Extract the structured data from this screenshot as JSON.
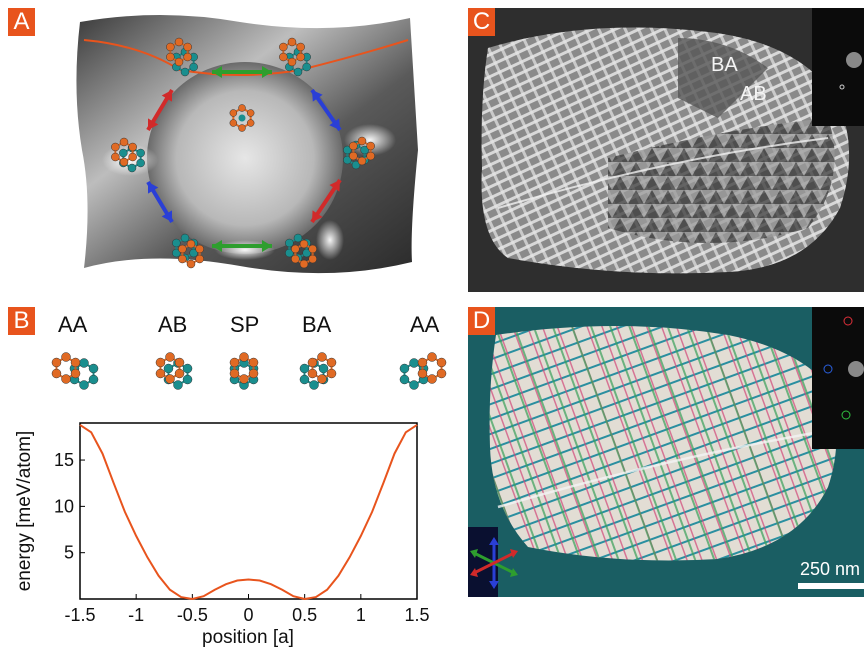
{
  "panels": {
    "a": {
      "tag": "A"
    },
    "b": {
      "tag": "B"
    },
    "c": {
      "tag": "C",
      "label_ba": "BA",
      "label_ab": "AB"
    },
    "d": {
      "tag": "D",
      "scale_text": "250 nm"
    }
  },
  "stackings": [
    "AA",
    "AB",
    "SP",
    "BA",
    "AA"
  ],
  "colors": {
    "accent": "#e8541d",
    "carbon_top": "#e06a24",
    "carbon_bottom": "#1a8e8e",
    "arrow_green": "#2e9e2e",
    "arrow_blue": "#2a3fd6",
    "arrow_red": "#d12a2a"
  },
  "chart_data": {
    "type": "line",
    "xlabel": "position [a]",
    "ylabel": "energy [meV/atom]",
    "xlim": [
      -1.5,
      1.5
    ],
    "ylim": [
      0,
      19
    ],
    "xticks": [
      "-1.5",
      "-1",
      "-0.5",
      "0",
      "0.5",
      "1",
      "1.5"
    ],
    "xtick_values": [
      -1.5,
      -1,
      -0.5,
      0,
      0.5,
      1,
      1.5
    ],
    "yticks": [
      "5",
      "10",
      "15"
    ],
    "ytick_values": [
      5,
      10,
      15
    ],
    "series": [
      {
        "x": [
          -1.5,
          -1.4,
          -1.3,
          -1.2,
          -1.1,
          -1.0,
          -0.9,
          -0.8,
          -0.7,
          -0.6,
          -0.5,
          -0.4,
          -0.3,
          -0.2,
          -0.1,
          0,
          0.1,
          0.2,
          0.3,
          0.4,
          0.5,
          0.6,
          0.7,
          0.8,
          0.9,
          1.0,
          1.1,
          1.2,
          1.3,
          1.4,
          1.5
        ],
        "y": [
          18.8,
          18.0,
          15.7,
          12.5,
          9.4,
          6.8,
          4.5,
          2.5,
          1.0,
          0.2,
          0.0,
          0.3,
          1.0,
          1.6,
          2.0,
          2.1,
          2.0,
          1.6,
          1.0,
          0.3,
          0.0,
          0.2,
          1.0,
          2.5,
          4.5,
          6.8,
          9.4,
          12.5,
          15.7,
          18.0,
          18.8
        ]
      }
    ]
  }
}
